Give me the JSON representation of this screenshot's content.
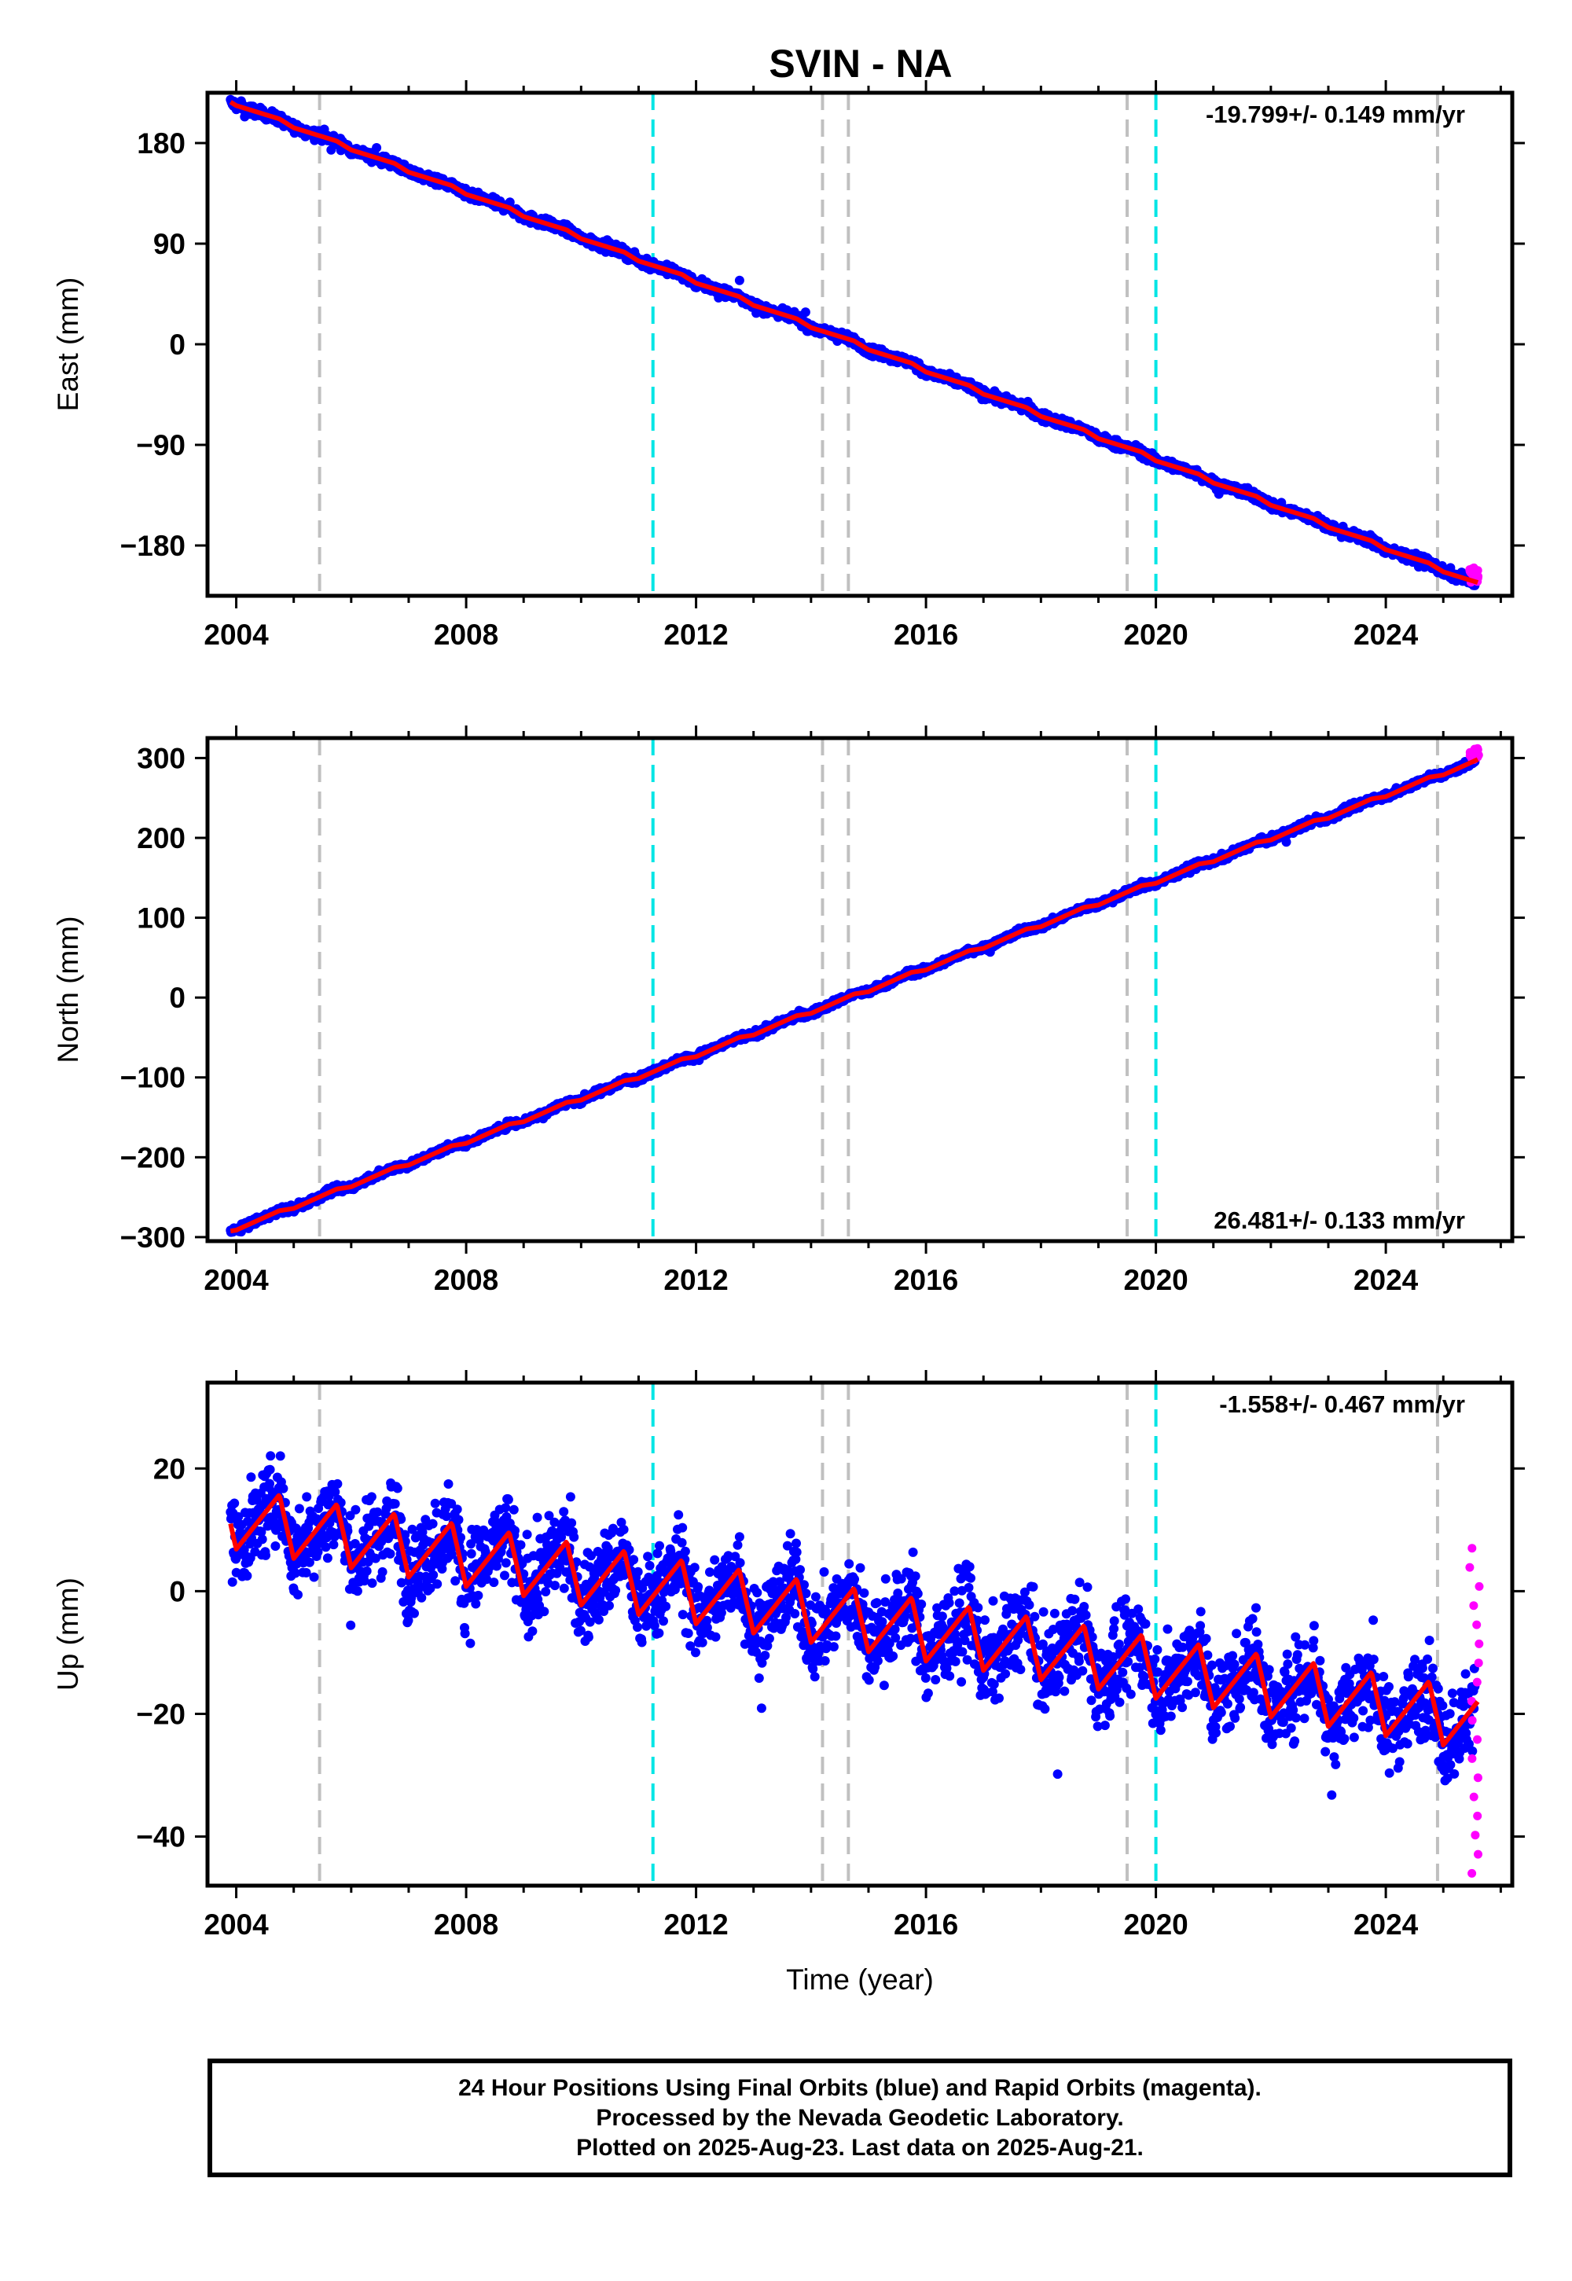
{
  "title": "SVIN - NA",
  "colors": {
    "final_orbits": "#0000ff",
    "rapid_orbits": "#ff00ff",
    "model_fit": "#ff0000",
    "equipment_change": "#c0c0c0",
    "earthquake": "#00e5e5"
  },
  "footer": {
    "line1": "24 Hour Positions Using Final Orbits (blue) and Rapid Orbits (magenta).",
    "line2": "Processed by the Nevada Geodetic Laboratory.",
    "line3": "Plotted on 2025-Aug-23. Last data on 2025-Aug-21."
  },
  "chart_data": [
    {
      "type": "scatter",
      "component": "East",
      "ylabel": "East (mm)",
      "xlabel": "",
      "xlim": [
        2003.5,
        2026.2
      ],
      "ylim": [
        -225,
        225
      ],
      "xticks": [
        2004,
        2008,
        2012,
        2016,
        2020,
        2024
      ],
      "xtick_labels": [
        "2004",
        "2008",
        "2012",
        "2016",
        "2020",
        "2024"
      ],
      "yticks": [
        180,
        90,
        0,
        -90,
        -180
      ],
      "ytick_labels": [
        "180",
        "90",
        "0",
        "−90",
        "−180"
      ],
      "rate_text": "-19.799+/- 0.149 mm/yr",
      "rate_position": "top-right",
      "trend": {
        "start": [
          2003.9,
          217
        ],
        "end": [
          2025.6,
          -214
        ]
      },
      "seasonal_amplitude": 1.5,
      "scatter_noise": 3,
      "rapid_range": [
        -200,
        -213
      ]
    },
    {
      "type": "scatter",
      "component": "North",
      "ylabel": "North (mm)",
      "xlabel": "",
      "xlim": [
        2003.5,
        2026.2
      ],
      "ylim": [
        -305,
        325
      ],
      "xticks": [
        2004,
        2008,
        2012,
        2016,
        2020,
        2024
      ],
      "xtick_labels": [
        "2004",
        "2008",
        "2012",
        "2016",
        "2020",
        "2024"
      ],
      "yticks": [
        300,
        200,
        100,
        0,
        -100,
        -200,
        -300
      ],
      "ytick_labels": [
        "300",
        "200",
        "100",
        "0",
        "−100",
        "−200",
        "−300"
      ],
      "rate_text": "26.481+/- 0.133 mm/yr",
      "rate_position": "bottom-right",
      "trend": {
        "start": [
          2003.9,
          -292
        ],
        "end": [
          2025.6,
          297
        ]
      },
      "seasonal_amplitude": 2,
      "scatter_noise": 3,
      "rapid_range": [
        298,
        312
      ]
    },
    {
      "type": "scatter",
      "component": "Up",
      "ylabel": "Up (mm)",
      "xlabel": "Time (year)",
      "xlim": [
        2003.5,
        2026.2
      ],
      "ylim": [
        -48,
        34
      ],
      "xticks": [
        2004,
        2008,
        2012,
        2016,
        2020,
        2024
      ],
      "xtick_labels": [
        "2004",
        "2008",
        "2012",
        "2016",
        "2020",
        "2024"
      ],
      "yticks": [
        20,
        0,
        -20,
        -40
      ],
      "ytick_labels": [
        "20",
        "0",
        "−20",
        "−40"
      ],
      "rate_text": "-1.558+/- 0.467 mm/yr",
      "rate_position": "top-right",
      "trend": {
        "start": [
          2003.9,
          12
        ],
        "end": [
          2025.6,
          -21
        ]
      },
      "seasonal_amplitude": 5,
      "scatter_noise": 5,
      "rapid_range": [
        7,
        -46
      ]
    }
  ],
  "vertical_lines": {
    "equipment_change": [
      2005.45,
      2014.2,
      2014.65,
      2019.5,
      2024.9
    ],
    "earthquake": [
      2011.25,
      2020.0
    ]
  }
}
